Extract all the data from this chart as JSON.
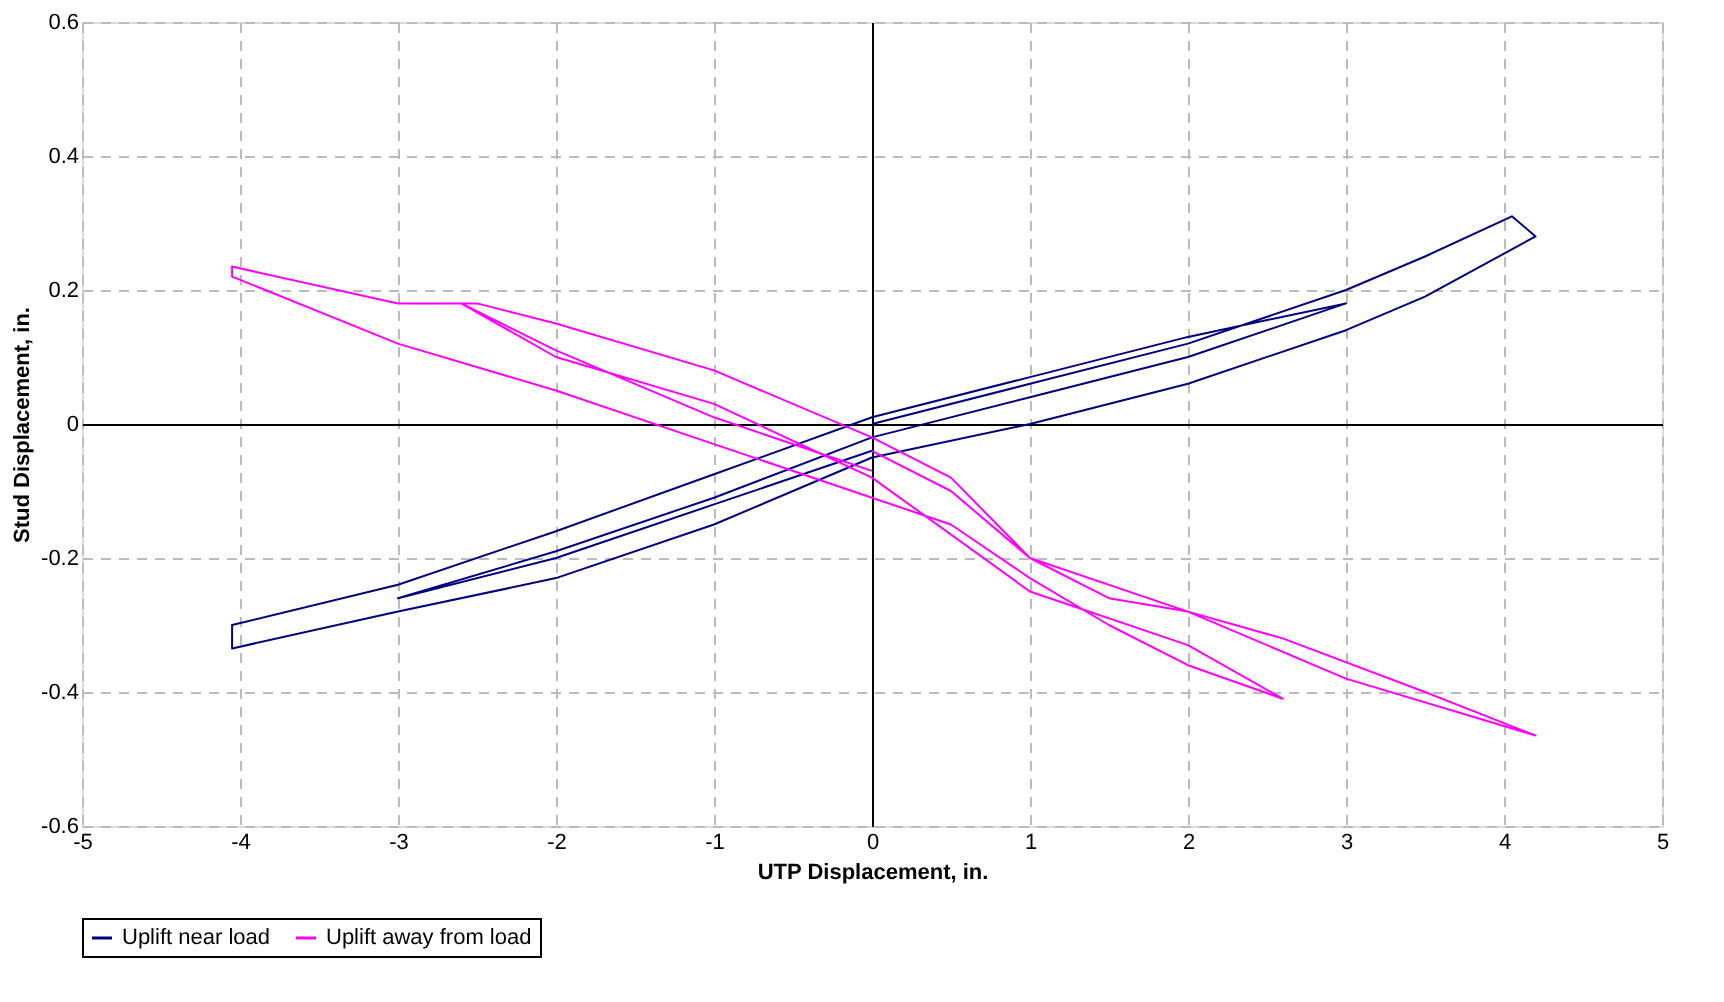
{
  "chart_data": {
    "type": "line",
    "xlabel": "UTP Displacement, in.",
    "ylabel": "Stud Displacement, in.",
    "xlim": [
      -5,
      5
    ],
    "ylim": [
      -0.6,
      0.6
    ],
    "xticks": [
      -5,
      -4,
      -3,
      -2,
      -1,
      0,
      1,
      2,
      3,
      4,
      5
    ],
    "yticks": [
      -0.6,
      -0.4,
      -0.2,
      0,
      0.2,
      0.4,
      0.6
    ],
    "grid": true,
    "legend": "bottom",
    "line_style": "solid",
    "marker": "none",
    "series": [
      {
        "name": "Uplift near load",
        "color": "#000080",
        "x": [
          0,
          1,
          2,
          3,
          3.5,
          4.05,
          4.2,
          3.5,
          3,
          2,
          1,
          0,
          -0.5,
          -1,
          -2,
          -3,
          -4.05,
          -4.05,
          -3,
          -2,
          -1,
          0,
          1,
          2,
          3,
          2,
          1,
          0,
          -1,
          -2,
          -3,
          -2,
          -1,
          0
        ],
        "values": [
          0.0,
          0.06,
          0.12,
          0.2,
          0.25,
          0.31,
          0.28,
          0.19,
          0.14,
          0.06,
          0.0,
          -0.05,
          -0.1,
          -0.15,
          -0.23,
          -0.28,
          -0.335,
          -0.3,
          -0.24,
          -0.16,
          -0.075,
          0.01,
          0.07,
          0.13,
          0.18,
          0.1,
          0.04,
          -0.02,
          -0.11,
          -0.19,
          -0.26,
          -0.2,
          -0.12,
          -0.04
        ]
      },
      {
        "name": "Uplift away from load",
        "color": "#ff00ff",
        "x": [
          0,
          0.5,
          1,
          1.5,
          2,
          2.6,
          3.5,
          4.2,
          3,
          2,
          1,
          0.5,
          0,
          -1,
          -2,
          -2.5,
          -3,
          -4.05,
          -4.05,
          -3,
          -2,
          -1,
          0,
          0.5,
          1,
          1.5,
          2,
          2.6,
          2,
          1,
          0,
          -1,
          -2,
          -2.6,
          -2,
          -1,
          0
        ],
        "values": [
          -0.04,
          -0.1,
          -0.2,
          -0.26,
          -0.28,
          -0.32,
          -0.4,
          -0.465,
          -0.38,
          -0.28,
          -0.2,
          -0.08,
          -0.02,
          0.08,
          0.15,
          0.18,
          0.18,
          0.235,
          0.22,
          0.12,
          0.05,
          -0.03,
          -0.11,
          -0.15,
          -0.23,
          -0.3,
          -0.36,
          -0.41,
          -0.33,
          -0.25,
          -0.08,
          0.03,
          0.1,
          0.18,
          0.11,
          0.01,
          -0.07
        ]
      }
    ]
  }
}
